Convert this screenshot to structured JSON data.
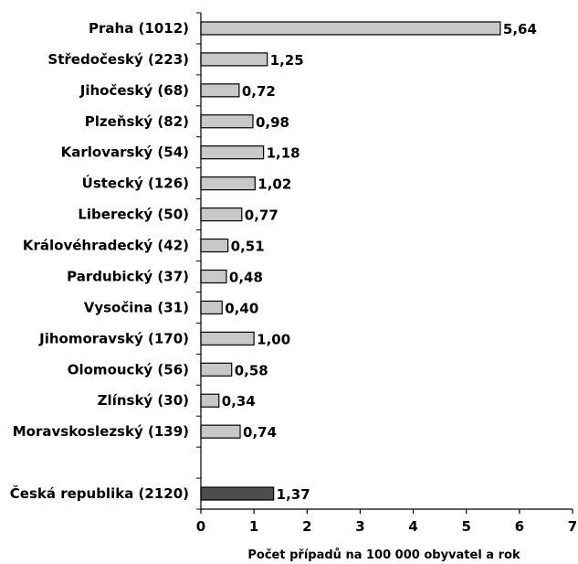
{
  "chart_data": {
    "type": "bar",
    "orientation": "horizontal",
    "categories": [
      "Praha  (1012)",
      "Středočeský  (223)",
      "Jihočeský  (68)",
      "Plzeňský  (82)",
      "Karlovarský  (54)",
      "Ústecký  (126)",
      "Liberecký  (50)",
      "Královéhradecký  (42)",
      "Pardubický  (37)",
      "Vysočina  (31)",
      "Jihomoravský  (170)",
      "Olomoucký  (56)",
      "Zlínský  (30)",
      "Moravskoslezský  (139)",
      "",
      "Česká republika  (2120)"
    ],
    "values": [
      5.64,
      1.25,
      0.72,
      0.98,
      1.18,
      1.02,
      0.77,
      0.51,
      0.48,
      0.4,
      1.0,
      0.58,
      0.34,
      0.74,
      null,
      1.37
    ],
    "value_labels": [
      "5,64",
      "1,25",
      "0,72",
      "0,98",
      "1,18",
      "1,02",
      "0,77",
      "0,51",
      "0,48",
      "0,40",
      "1,00",
      "0,58",
      "0,34",
      "0,74",
      "",
      "1,37"
    ],
    "xlim": [
      0,
      7
    ],
    "xticks": [
      "0",
      "1",
      "2",
      "3",
      "4",
      "5",
      "6",
      "7"
    ],
    "xlabel": "Počet případů na 100 000 obyvatel a rok",
    "title": "",
    "grid": false,
    "colors": {
      "region_bar": "#c8c8c8",
      "total_bar": "#4d4d4d",
      "bar_stroke": "#000000",
      "axis": "#000000"
    }
  }
}
